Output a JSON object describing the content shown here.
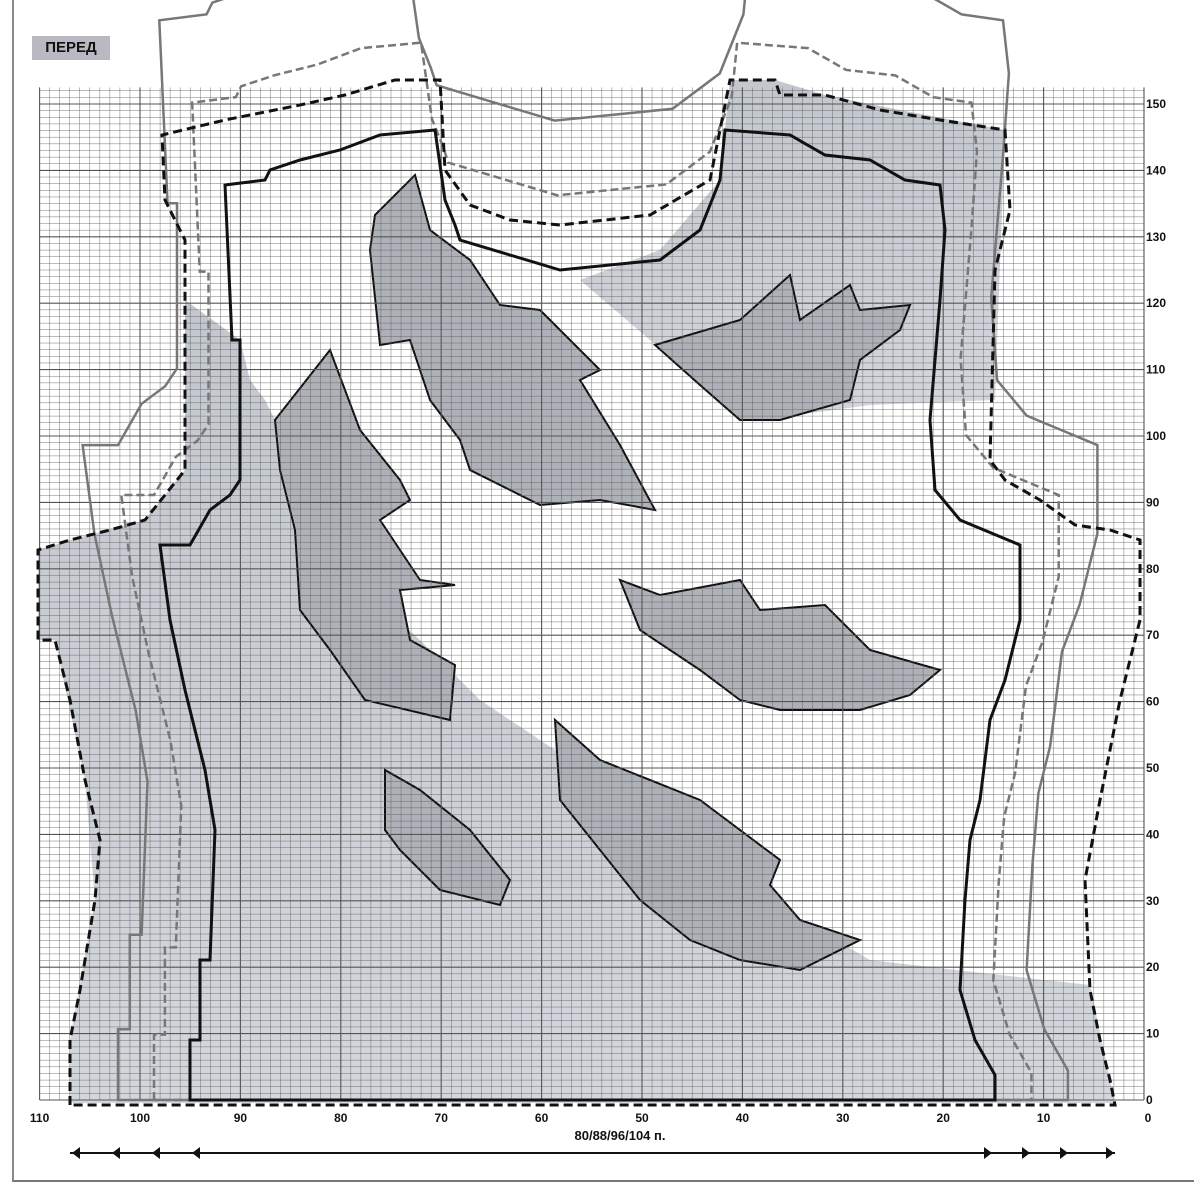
{
  "title": "ПЕРЕД",
  "size_caption": "80/88/96/104 п.",
  "x_axis": {
    "labels": [
      "110",
      "100",
      "90",
      "80",
      "70",
      "60",
      "50",
      "40",
      "30",
      "20",
      "10",
      "0"
    ],
    "range": [
      110,
      0
    ],
    "stitches": 110
  },
  "y_axis": {
    "labels": [
      "0",
      "10",
      "20",
      "30",
      "40",
      "50",
      "60",
      "70",
      "80",
      "90",
      "100",
      "110",
      "120",
      "130",
      "140",
      "150"
    ],
    "range": [
      0,
      152
    ]
  },
  "colors": {
    "grid": "#555555",
    "fill": "#c4c8cf",
    "feather": "#aeb2b8",
    "outline": "#111111",
    "size_line": "#777777"
  },
  "legend_lines": [
    "solid-black",
    "dashed-grey",
    "solid-grey",
    "dashed-black"
  ]
}
